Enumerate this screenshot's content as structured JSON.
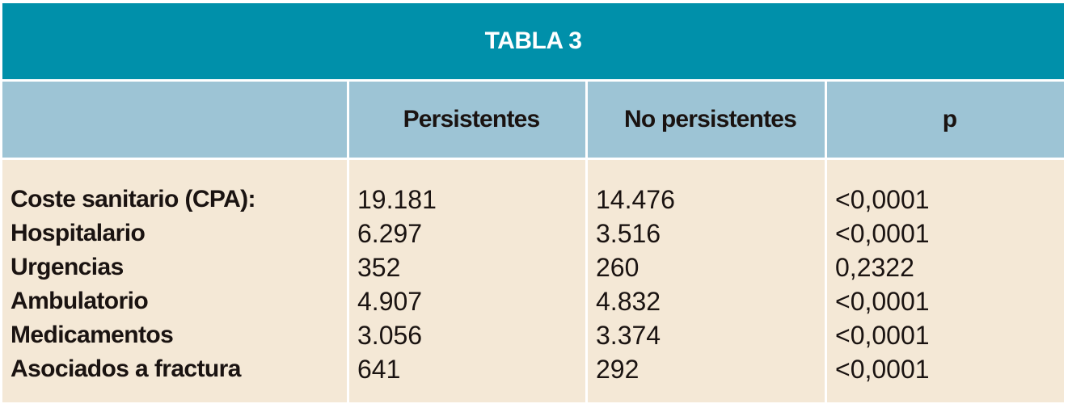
{
  "title": "TABLA 3",
  "headers": [
    "",
    "Persistentes",
    "No persistentes",
    "p"
  ],
  "rows": [
    {
      "label": "Coste sanitario (CPA):",
      "persistentes": "19.181",
      "no_persistentes": "14.476",
      "p": "<0,0001"
    },
    {
      "label": "Hospitalario",
      "persistentes": "6.297",
      "no_persistentes": "3.516",
      "p": "<0,0001"
    },
    {
      "label": "Urgencias",
      "persistentes": "352",
      "no_persistentes": "260",
      "p": "0,2322"
    },
    {
      "label": "Ambulatorio",
      "persistentes": "4.907",
      "no_persistentes": "4.832",
      "p": "<0,0001"
    },
    {
      "label": "Medicamentos",
      "persistentes": "3.056",
      "no_persistentes": "3.374",
      "p": "<0,0001"
    },
    {
      "label": "Asociados a fractura",
      "persistentes": "641",
      "no_persistentes": "292",
      "p": "<0,0001"
    }
  ]
}
